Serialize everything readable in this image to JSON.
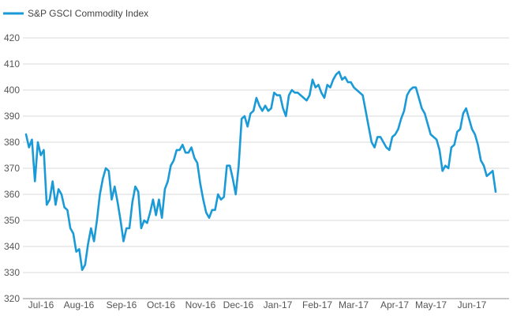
{
  "chart_data": {
    "type": "line",
    "title": "",
    "xlabel": "",
    "ylabel": "",
    "ylim": [
      320,
      420
    ],
    "yticks": [
      320,
      330,
      340,
      350,
      360,
      370,
      380,
      390,
      400,
      410,
      420
    ],
    "xtick_labels": [
      "Jul-16",
      "Aug-16",
      "Sep-16",
      "Oct-16",
      "Nov-16",
      "Dec-16",
      "Jan-17",
      "Feb-17",
      "Mar-17",
      "Apr-17",
      "May-17",
      "Jun-17"
    ],
    "grid": "horizontal",
    "legend_position": "top-left",
    "line_color": "#1a9ad6",
    "series": [
      {
        "name": "S&P GSCI Commodity Index",
        "values": [
          383,
          378,
          381,
          365,
          380,
          375,
          377,
          356,
          358,
          365,
          356,
          362,
          360,
          355,
          354,
          347,
          345,
          338,
          339,
          331,
          333,
          341,
          347,
          342,
          350,
          360,
          366,
          370,
          369,
          358,
          363,
          357,
          350,
          342,
          347,
          347,
          357,
          363,
          361,
          347,
          350,
          349,
          353,
          358,
          352,
          358,
          351,
          362,
          365,
          371,
          373,
          377,
          377,
          379,
          376,
          376,
          378,
          374,
          372,
          364,
          358,
          353,
          351,
          354,
          354,
          360,
          358,
          359,
          371,
          371,
          366,
          360,
          371,
          389,
          390,
          386,
          391,
          392,
          397,
          394,
          392,
          394,
          392,
          393,
          399,
          398,
          398,
          393,
          390,
          398,
          400,
          399,
          399,
          398,
          397,
          396,
          398,
          404,
          401,
          402,
          399,
          397,
          402,
          401,
          404,
          406,
          407,
          404,
          405,
          403,
          403,
          401,
          400,
          399,
          398,
          392,
          386,
          380,
          378,
          382,
          382,
          380,
          378,
          377,
          382,
          383,
          385,
          389,
          392,
          398,
          400,
          401,
          401,
          397,
          393,
          391,
          387,
          383,
          382,
          381,
          377,
          369,
          371,
          370,
          378,
          379,
          384,
          385,
          391,
          393,
          389,
          385,
          383,
          379,
          373,
          371,
          367,
          368,
          369,
          361
        ]
      }
    ]
  }
}
